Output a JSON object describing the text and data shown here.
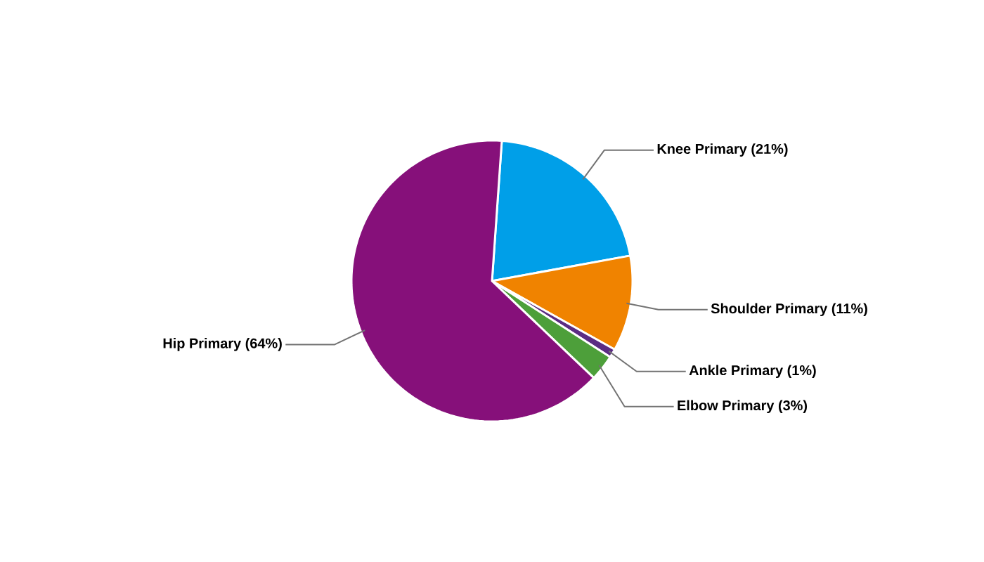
{
  "chart_data": {
    "type": "pie",
    "categories": [
      "Knee Primary (21%)",
      "Shoulder Primary (11%)",
      "Ankle Primary (1%)",
      "Elbow Primary (3%)",
      "Hip Primary (64%)"
    ],
    "values": [
      21,
      11,
      1,
      3,
      64
    ],
    "colors": [
      "#009fe8",
      "#f08300",
      "#5b2c83",
      "#4d9f3a",
      "#86107a"
    ]
  }
}
